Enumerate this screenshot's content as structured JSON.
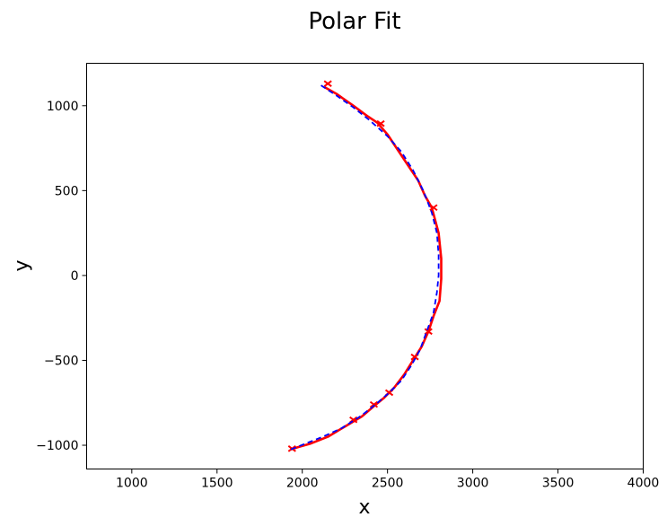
{
  "chart_data": {
    "type": "line",
    "title": "Polar Fit",
    "xlabel": "x",
    "ylabel": "y",
    "xlim": [
      735,
      4000
    ],
    "ylim": [
      -1140,
      1250
    ],
    "grid": false,
    "legend": "none",
    "xticks": [
      1000,
      1500,
      2000,
      2500,
      3000,
      3500,
      4000
    ],
    "xtick_labels": [
      "1000",
      "1500",
      "2000",
      "2500",
      "3000",
      "3500",
      "4000"
    ],
    "yticks": [
      1000,
      500,
      0,
      -500,
      -1000
    ],
    "ytick_labels": [
      "1000",
      "500",
      "0",
      "−500",
      "−1000"
    ],
    "series": [
      {
        "style": "solid",
        "color": "#ff0000",
        "points": [
          [
            2130,
            1110
          ],
          [
            2200,
            1070
          ],
          [
            2300,
            1000
          ],
          [
            2380,
            940
          ],
          [
            2440,
            900
          ],
          [
            2500,
            830
          ],
          [
            2560,
            740
          ],
          [
            2620,
            650
          ],
          [
            2680,
            560
          ],
          [
            2720,
            470
          ],
          [
            2760,
            400
          ],
          [
            2800,
            250
          ],
          [
            2815,
            100
          ],
          [
            2815,
            -20
          ],
          [
            2805,
            -150
          ],
          [
            2770,
            -240
          ],
          [
            2740,
            -330
          ],
          [
            2700,
            -420
          ],
          [
            2650,
            -500
          ],
          [
            2600,
            -580
          ],
          [
            2540,
            -660
          ],
          [
            2480,
            -720
          ],
          [
            2420,
            -770
          ],
          [
            2350,
            -830
          ],
          [
            2250,
            -890
          ],
          [
            2150,
            -950
          ],
          [
            2050,
            -990
          ],
          [
            1980,
            -1010
          ],
          [
            1930,
            -1025
          ]
        ],
        "marks": [
          [
            2150,
            1130
          ],
          [
            2460,
            895
          ],
          [
            2770,
            400
          ],
          [
            2740,
            -330
          ],
          [
            2660,
            -480
          ],
          [
            2510,
            -690
          ],
          [
            2420,
            -760
          ],
          [
            2300,
            -850
          ],
          [
            1940,
            -1020
          ]
        ]
      },
      {
        "style": "dashed",
        "color": "#0000ff",
        "points": [
          [
            2110,
            1120
          ],
          [
            2200,
            1060
          ],
          [
            2300,
            990
          ],
          [
            2400,
            910
          ],
          [
            2500,
            820
          ],
          [
            2580,
            730
          ],
          [
            2650,
            620
          ],
          [
            2710,
            500
          ],
          [
            2760,
            370
          ],
          [
            2790,
            250
          ],
          [
            2800,
            120
          ],
          [
            2800,
            0
          ],
          [
            2790,
            -100
          ],
          [
            2770,
            -220
          ],
          [
            2730,
            -330
          ],
          [
            2690,
            -440
          ],
          [
            2640,
            -530
          ],
          [
            2580,
            -620
          ],
          [
            2510,
            -690
          ],
          [
            2430,
            -760
          ],
          [
            2340,
            -830
          ],
          [
            2230,
            -900
          ],
          [
            2120,
            -950
          ],
          [
            2020,
            -990
          ],
          [
            1920,
            -1030
          ]
        ]
      }
    ]
  }
}
